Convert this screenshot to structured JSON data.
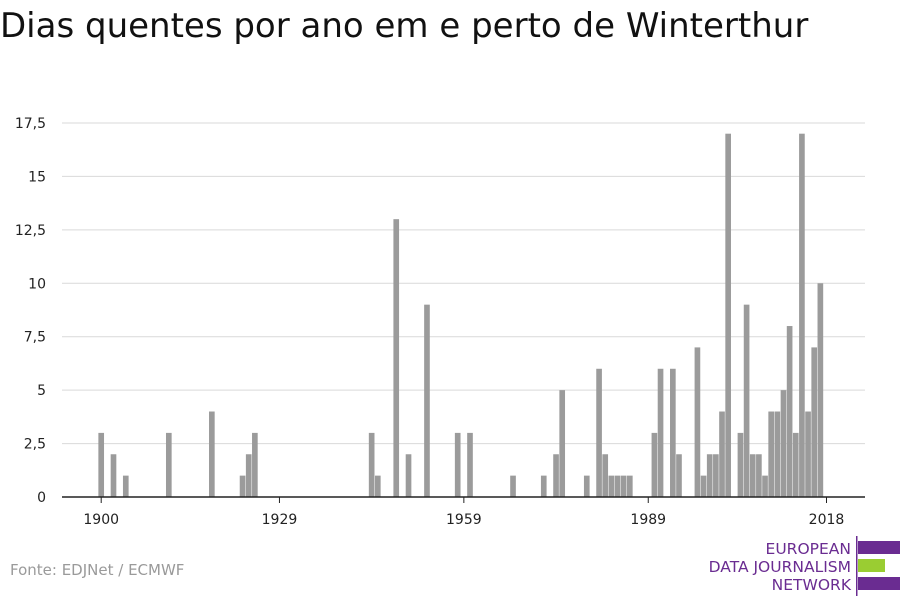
{
  "title": "Dias quentes por ano em e perto de Winterthur",
  "source": "Fonte: EDJNet / ECMWF",
  "logo": {
    "line1": "EUROPEAN",
    "line2": "DATA JOURNALISM",
    "line3": "NETWORK"
  },
  "colors": {
    "bar": "#9b9b9b",
    "grid": "#d9d9d9",
    "axis": "#222222",
    "logo_purple": "#6a2c91",
    "logo_green": "#9acd32"
  },
  "chart_data": {
    "type": "bar",
    "title": "Dias quentes por ano em e perto de Winterthur",
    "xlabel": "",
    "ylabel": "",
    "x_tick_labels": [
      "1900",
      "1929",
      "1959",
      "1989",
      "2018"
    ],
    "y_tick_labels": [
      "0",
      "2,5",
      "5",
      "7,5",
      "10",
      "12,5",
      "15",
      "17,5"
    ],
    "ylim": [
      0,
      17.5
    ],
    "xlim": [
      1900,
      2018
    ],
    "grid": true,
    "years": [
      1900,
      1901,
      1902,
      1903,
      1904,
      1905,
      1906,
      1907,
      1908,
      1909,
      1910,
      1911,
      1912,
      1913,
      1914,
      1915,
      1916,
      1917,
      1918,
      1919,
      1920,
      1921,
      1922,
      1923,
      1924,
      1925,
      1926,
      1927,
      1928,
      1929,
      1930,
      1931,
      1932,
      1933,
      1934,
      1935,
      1936,
      1937,
      1938,
      1939,
      1940,
      1941,
      1942,
      1943,
      1944,
      1945,
      1946,
      1947,
      1948,
      1949,
      1950,
      1951,
      1952,
      1953,
      1954,
      1955,
      1956,
      1957,
      1958,
      1959,
      1960,
      1961,
      1962,
      1963,
      1964,
      1965,
      1966,
      1967,
      1968,
      1969,
      1970,
      1971,
      1972,
      1973,
      1974,
      1975,
      1976,
      1977,
      1978,
      1979,
      1980,
      1981,
      1982,
      1983,
      1984,
      1985,
      1986,
      1987,
      1988,
      1989,
      1990,
      1991,
      1992,
      1993,
      1994,
      1995,
      1996,
      1997,
      1998,
      1999,
      2000,
      2001,
      2002,
      2003,
      2004,
      2005,
      2006,
      2007,
      2008,
      2009,
      2010,
      2011,
      2012,
      2013,
      2014,
      2015,
      2016,
      2017,
      2018
    ],
    "values": [
      3,
      0,
      2,
      0,
      1,
      0,
      0,
      0,
      0,
      0,
      0,
      3,
      0,
      0,
      0,
      0,
      0,
      0,
      4,
      0,
      0,
      0,
      0,
      1,
      2,
      3,
      0,
      0,
      0,
      0,
      0,
      0,
      0,
      0,
      0,
      0,
      0,
      0,
      0,
      0,
      0,
      0,
      0,
      0,
      3,
      1,
      0,
      0,
      13,
      0,
      2,
      0,
      0,
      9,
      0,
      0,
      0,
      0,
      3,
      0,
      3,
      0,
      0,
      0,
      0,
      0,
      0,
      1,
      0,
      0,
      0,
      0,
      1,
      0,
      2,
      5,
      0,
      0,
      0,
      1,
      0,
      6,
      2,
      1,
      1,
      1,
      1,
      0,
      0,
      0,
      3,
      6,
      0,
      6,
      2,
      0,
      0,
      7,
      1,
      2,
      2,
      4,
      17,
      0,
      3,
      9,
      2,
      2,
      1,
      4,
      4,
      5,
      8,
      3,
      17,
      4,
      7,
      10,
      0
    ]
  }
}
